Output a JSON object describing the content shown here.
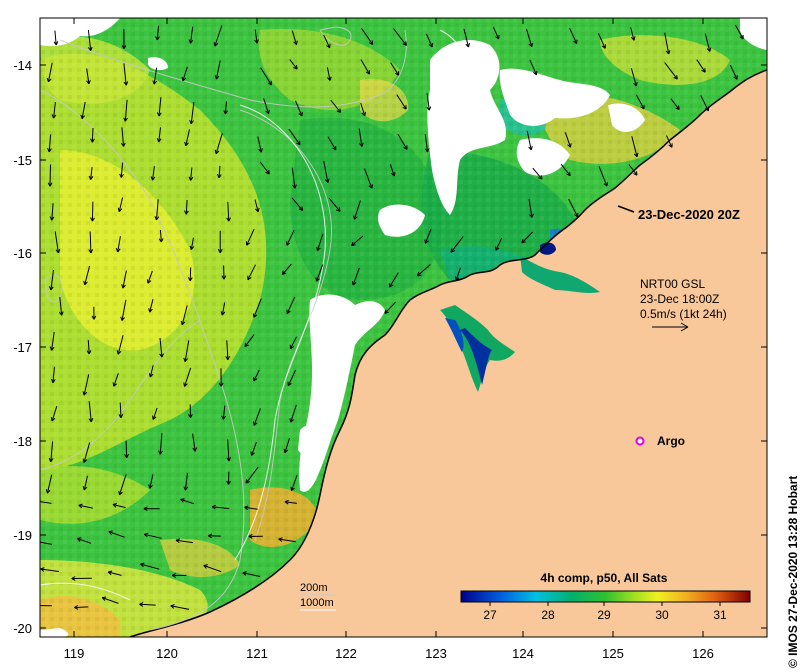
{
  "map": {
    "y_axis_labels": [
      "-14",
      "-15",
      "-16",
      "-17",
      "-18",
      "-19",
      "-20"
    ],
    "x_axis_labels": [
      "119",
      "120",
      "121",
      "122",
      "123",
      "124",
      "125",
      "126"
    ],
    "timestamp_label": "23-Dec-2020 20Z",
    "current_legend": {
      "line1": "NRT00 GSL",
      "line2": "23-Dec 18:00Z",
      "line3": "0.5m/s (1kt 24h)"
    },
    "argo_label": "Argo",
    "isobath_legend": {
      "line1": "200m",
      "line2": "1000m"
    },
    "colorbar": {
      "title": "4h comp, p50, All Sats",
      "ticks": [
        "27",
        "28",
        "29",
        "30",
        "31"
      ]
    },
    "credit": "© IMOS 27-Dec-2020 13:28 Hobart",
    "colors": {
      "land": "#F8C89A",
      "cloud": "#FFFFFF",
      "sst_low": "#000080",
      "sst_mid": "#2CBF4A",
      "sst_high": "#F0F020",
      "sst_max": "#8B0000",
      "argo_marker": "#E000E0"
    }
  }
}
